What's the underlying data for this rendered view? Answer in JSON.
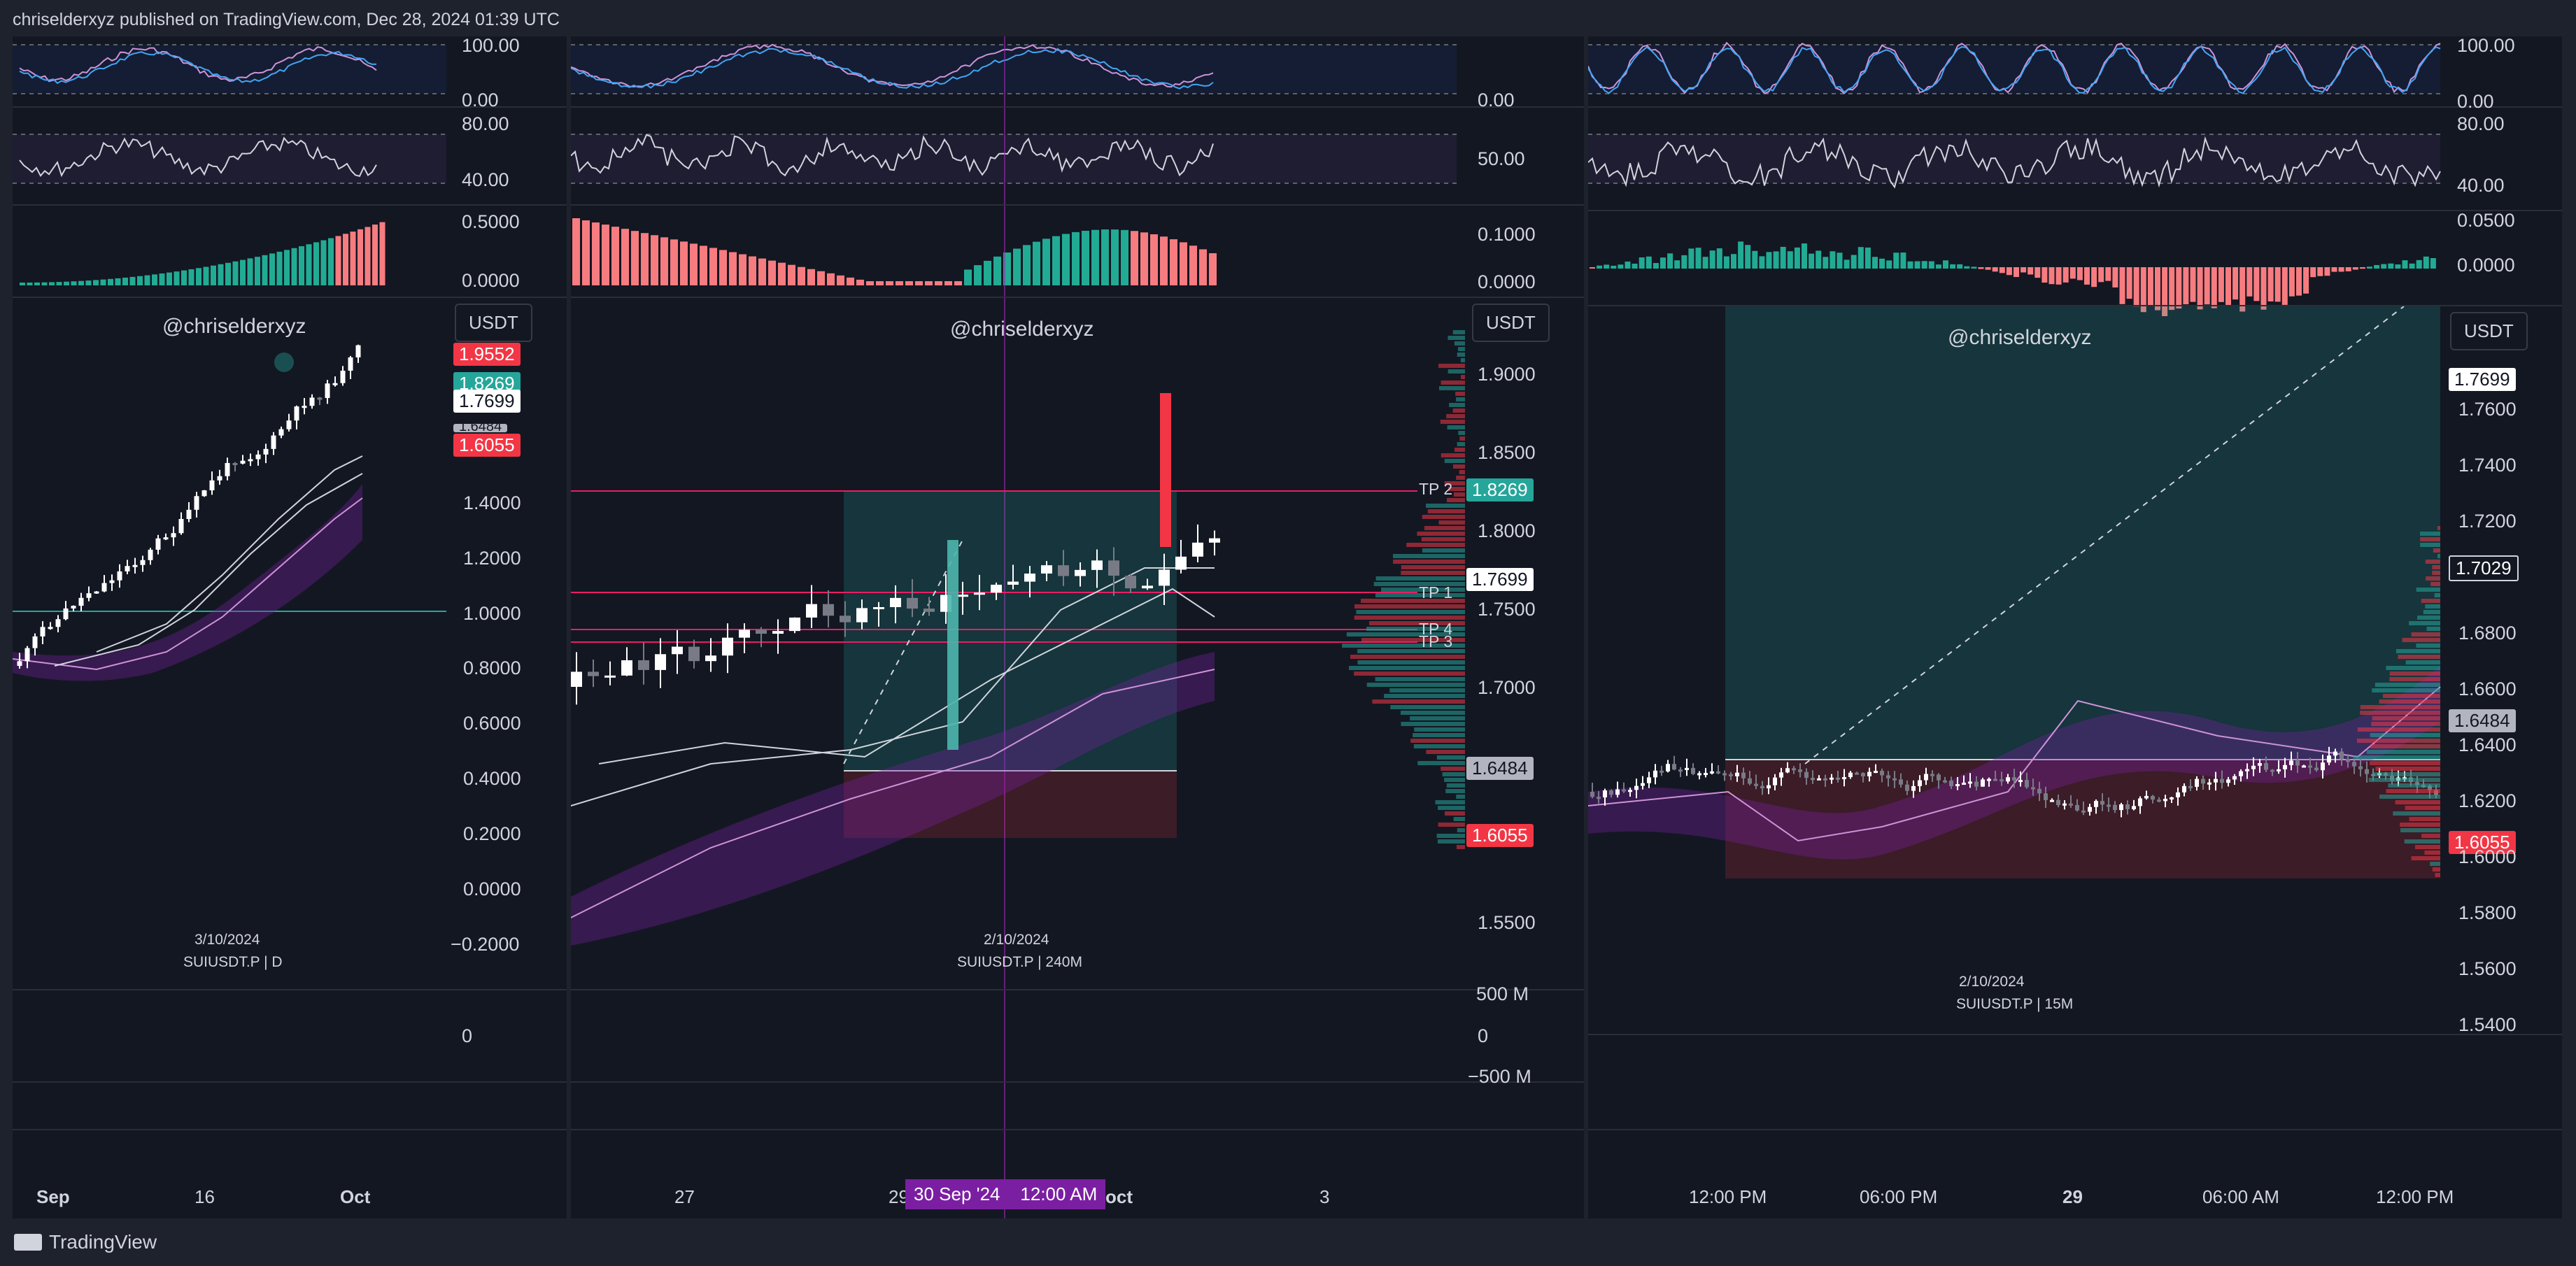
{
  "header": {
    "publish_line": "chriselderxyz published on TradingView.com, Dec 28, 2024 01:39 UTC"
  },
  "footer": {
    "brand": "TradingView"
  },
  "colors": {
    "bg": "#131722",
    "up": "#26a69a",
    "down": "#f23645",
    "tp_line": "#e91e63",
    "ema": "#9c4dcc",
    "accent_purple": "#7b1fa2"
  },
  "panels": [
    {
      "watermark": "@chriselderxyz",
      "currency": "USDT",
      "snapshot_date": "3/10/2024",
      "symbol_line": "SUIUSDT.P | D",
      "stoch_axis": [
        "100.00",
        "0.00"
      ],
      "rsi_axis": [
        "80.00",
        "40.00"
      ],
      "macd_axis": [
        "0.5000",
        "0.0000"
      ],
      "price_axis": [
        "1.4000",
        "1.2000",
        "1.0000",
        "0.8000",
        "0.6000",
        "0.4000",
        "0.2000",
        "0.0000",
        "−0.2000"
      ],
      "price_tags": [
        "1.9552",
        "1.8269",
        "1.7699",
        "1.6484",
        "1.6055"
      ],
      "volume_axis": [
        "0"
      ],
      "time_axis": [
        "Sep",
        "16",
        "Oct"
      ]
    },
    {
      "watermark": "@chriselderxyz",
      "currency": "USDT",
      "snapshot_date": "2/10/2024",
      "symbol_line": "SUIUSDT.P | 240M",
      "stoch_axis": [
        "0.00"
      ],
      "rsi_axis": [
        "50.00"
      ],
      "macd_axis": [
        "0.1000",
        "0.0000"
      ],
      "price_axis": [
        "1.9000",
        "1.8500",
        "1.8000",
        "1.7500",
        "1.7000",
        "1.5500"
      ],
      "price_tags": [
        "1.8269",
        "1.7699",
        "1.6484",
        "1.6055"
      ],
      "tp_labels": [
        "TP 2",
        "TP 1",
        "TP 4",
        "TP 3"
      ],
      "volume_axis": [
        "500 M",
        "0",
        "−500 M"
      ],
      "time_axis": [
        "27",
        "29",
        "oct",
        "3"
      ],
      "crosshair_time": "30 Sep '24    12:00 AM"
    },
    {
      "watermark": "@chriselderxyz",
      "currency": "USDT",
      "snapshot_date": "2/10/2024",
      "symbol_line": "SUIUSDT.P | 15M",
      "stoch_axis": [
        "100.00",
        "0.00"
      ],
      "rsi_axis": [
        "80.00",
        "40.00"
      ],
      "macd_axis": [
        "0.0500",
        "0.0000"
      ],
      "price_axis": [
        "1.7600",
        "1.7400",
        "1.7200",
        "1.6800",
        "1.6600",
        "1.6400",
        "1.6200",
        "1.6000",
        "1.5800",
        "1.5600",
        "1.5400"
      ],
      "price_tags": [
        "1.7699",
        "1.7029",
        "1.6484",
        "1.6055"
      ],
      "time_axis": [
        "12:00 PM",
        "06:00 PM",
        "29",
        "06:00 AM",
        "12:00 PM"
      ]
    }
  ]
}
